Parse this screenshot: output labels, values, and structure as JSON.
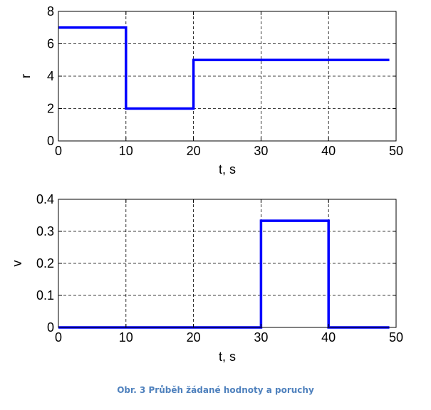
{
  "caption": "Obr. 3 Průběh žádané hodnoty a poruchy",
  "colors": {
    "series": "#0000ff",
    "grid": "#000000",
    "caption": "#4f81bd"
  },
  "chart_data": [
    {
      "type": "line",
      "line_shape": "step",
      "title": "",
      "xlabel": "t, s",
      "ylabel": "r",
      "xlim": [
        0,
        50
      ],
      "ylim": [
        0,
        8
      ],
      "xticks": [
        0,
        10,
        20,
        30,
        40,
        50
      ],
      "yticks": [
        0,
        2,
        4,
        6,
        8
      ],
      "grid": true,
      "series": [
        {
          "x": [
            0,
            10,
            10,
            20,
            20,
            49
          ],
          "y": [
            7,
            7,
            2,
            2,
            5,
            5
          ]
        }
      ]
    },
    {
      "type": "line",
      "line_shape": "step",
      "title": "",
      "xlabel": "t, s",
      "ylabel": "v",
      "xlim": [
        0,
        50
      ],
      "ylim": [
        0,
        0.4
      ],
      "xticks": [
        0,
        10,
        20,
        30,
        40,
        50
      ],
      "yticks": [
        0,
        0.1,
        0.2,
        0.3,
        0.4
      ],
      "grid": true,
      "series": [
        {
          "x": [
            0,
            30,
            30,
            40,
            40,
            49
          ],
          "y": [
            0,
            0,
            0.333,
            0.333,
            0,
            0
          ]
        }
      ]
    }
  ]
}
